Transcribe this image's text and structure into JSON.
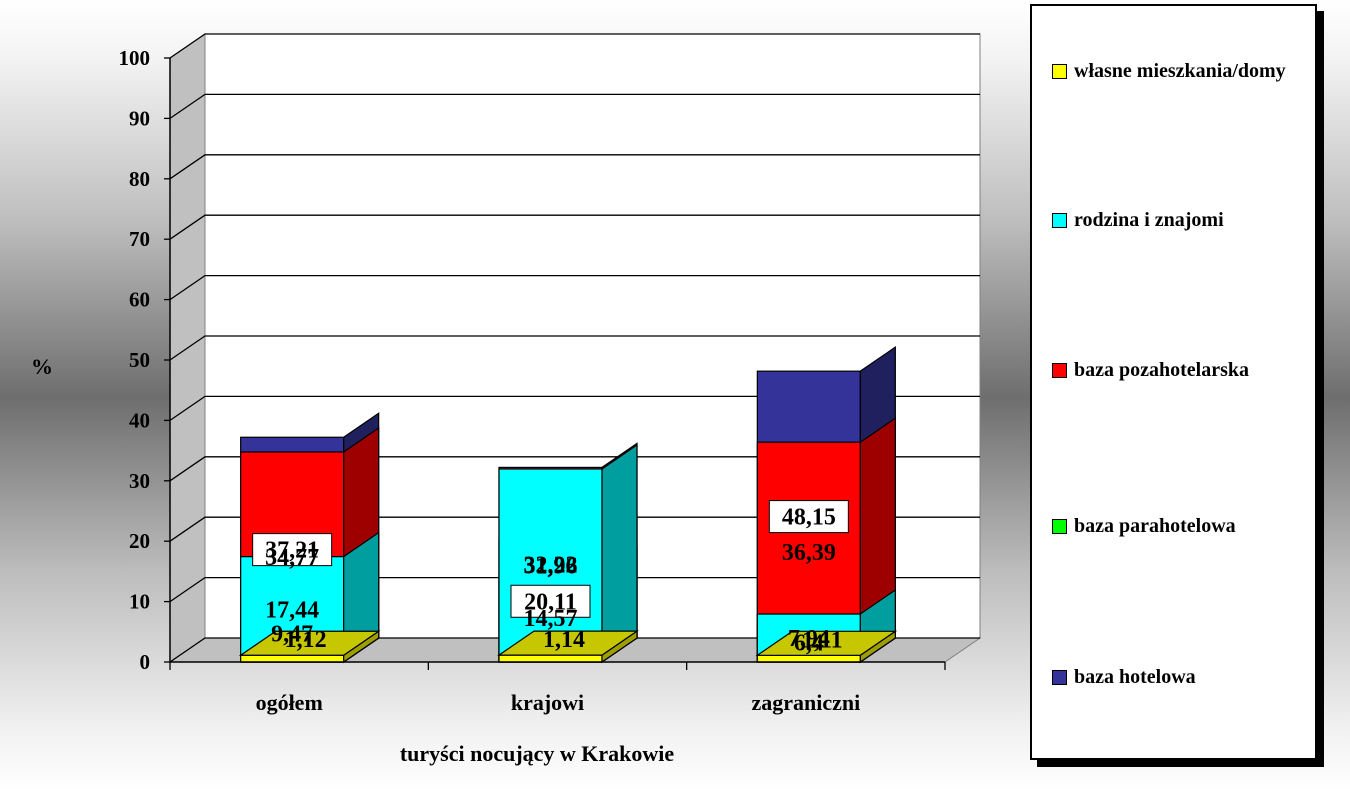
{
  "chart_data": {
    "type": "bar",
    "stacked": true,
    "three_d": true,
    "categories": [
      "ogółem",
      "krajowi",
      "zagraniczni"
    ],
    "series": [
      {
        "name": "baza hotelowa",
        "color": "#333399",
        "values": [
          37.21,
          20.11,
          48.15
        ]
      },
      {
        "name": "baza parahotelowa",
        "color": "#00ff00",
        "values": [
          9.47,
          14.57,
          6.4
        ]
      },
      {
        "name": "baza pozahotelarska",
        "color": "#ff0000",
        "values": [
          34.77,
          32.22,
          36.39
        ]
      },
      {
        "name": "rodzina i znajomi",
        "color": "#00ffff",
        "values": [
          17.44,
          31.96,
          7.94
        ]
      },
      {
        "name": "własne mieszkania/domy",
        "color": "#ffff00",
        "values": [
          1.12,
          1.14,
          1.11
        ]
      }
    ],
    "data_labels": [
      [
        "37,21",
        "20,11",
        "48,15"
      ],
      [
        "9,47",
        "14,57",
        "6,4"
      ],
      [
        "34,77",
        "32,22",
        "36,39"
      ],
      [
        "17,44",
        "31,96",
        "7,94"
      ],
      [
        "1,12",
        "1,14",
        "1,11"
      ]
    ],
    "xlabel": "turyści nocujący w Krakowie",
    "ylabel": "%",
    "ylim": [
      0,
      100
    ],
    "yticks": [
      "0",
      "10",
      "20",
      "30",
      "40",
      "50",
      "60",
      "70",
      "80",
      "90",
      "100"
    ],
    "grid": true,
    "legend_position": "right"
  },
  "legend": {
    "items": [
      {
        "label": "własne mieszkania/domy",
        "color": "#ffff00"
      },
      {
        "label": "rodzina i znajomi",
        "color": "#00ffff"
      },
      {
        "label": "baza pozahotelarska",
        "color": "#ff0000"
      },
      {
        "label": "baza parahotelowa",
        "color": "#00ff00"
      },
      {
        "label": "baza hotelowa",
        "color": "#333399"
      }
    ]
  }
}
